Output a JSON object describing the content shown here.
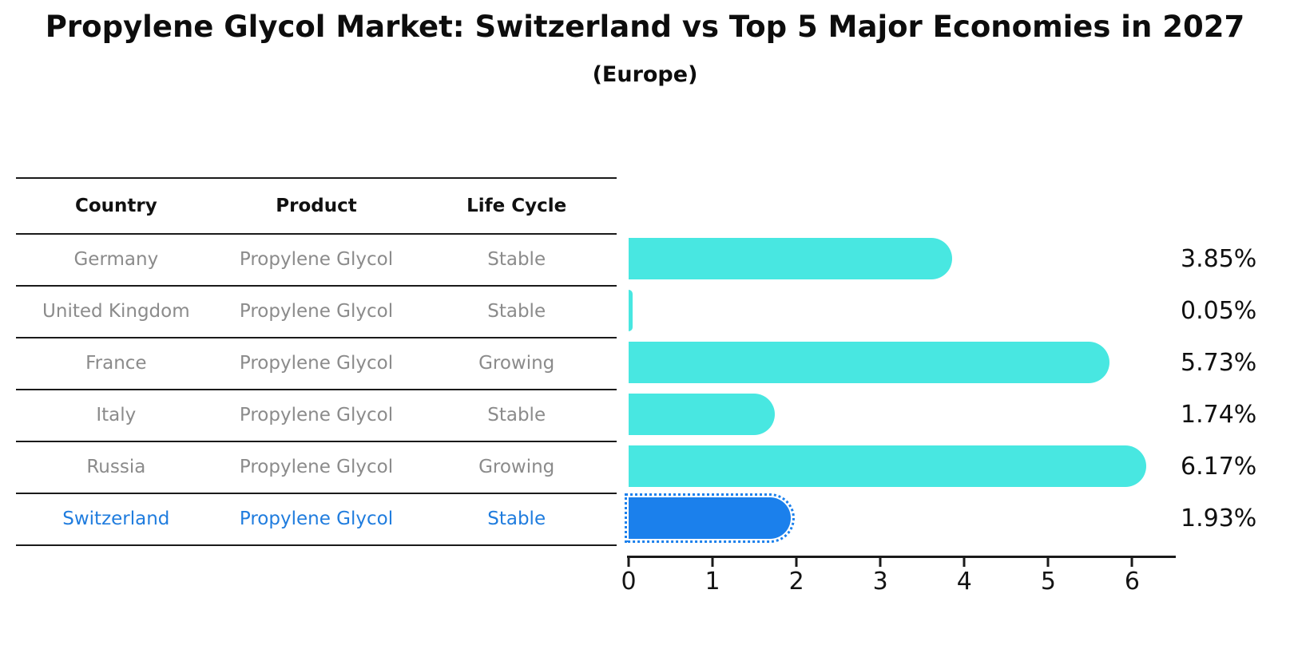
{
  "title": "Propylene Glycol Market: Switzerland vs Top 5 Major Economies in 2027",
  "subtitle": "(Europe)",
  "table": {
    "headers": [
      "Country",
      "Product",
      "Life Cycle"
    ],
    "rows": [
      {
        "country": "Germany",
        "product": "Propylene Glycol",
        "life_cycle": "Stable",
        "highlight": false
      },
      {
        "country": "United Kingdom",
        "product": "Propylene Glycol",
        "life_cycle": "Stable",
        "highlight": false
      },
      {
        "country": "France",
        "product": "Propylene Glycol",
        "life_cycle": "Growing",
        "highlight": false
      },
      {
        "country": "Italy",
        "product": "Propylene Glycol",
        "life_cycle": "Stable",
        "highlight": false
      },
      {
        "country": "Russia",
        "product": "Propylene Glycol",
        "life_cycle": "Growing",
        "highlight": false
      },
      {
        "country": "Switzerland",
        "product": "Propylene Glycol",
        "life_cycle": "Stable",
        "highlight": true
      }
    ]
  },
  "chart_data": {
    "type": "bar",
    "orientation": "horizontal",
    "categories": [
      "Germany",
      "United Kingdom",
      "France",
      "Italy",
      "Russia",
      "Switzerland"
    ],
    "values": [
      3.85,
      0.05,
      5.73,
      1.74,
      6.17,
      1.93
    ],
    "value_labels": [
      "3.85%",
      "0.05%",
      "5.73%",
      "1.74%",
      "6.17%",
      "1.93%"
    ],
    "x_ticks": [
      0,
      1,
      2,
      3,
      4,
      5,
      6
    ],
    "xlim": [
      0,
      6.5
    ],
    "highlight_index": 5,
    "highlight_style": "dotted-outline",
    "legend": "none",
    "grid": "off"
  },
  "colors": {
    "bar_cyan": "#48E7E1",
    "bar_blue": "#1B80EC",
    "text_blue": "#1F7CDE",
    "text_gray": "#8B8B8B",
    "line": "#1A1A1A"
  }
}
